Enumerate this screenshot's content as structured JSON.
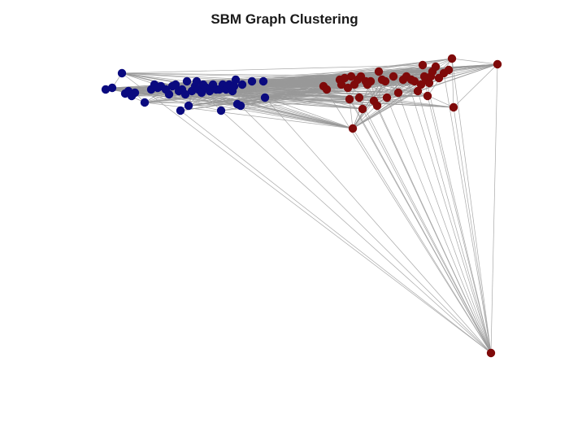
{
  "title": "SBM Graph Clustering",
  "colors": {
    "cluster_1": "#0a0a7f",
    "cluster_2": "#7f0a0a",
    "edge": "#999999",
    "background": "#ffffff"
  },
  "chart_data": {
    "type": "graph",
    "title": "SBM Graph Clustering",
    "clusters": [
      {
        "color": "#0a0a7f"
      },
      {
        "color": "#7f0a0a"
      }
    ],
    "axes_visible": false
  }
}
